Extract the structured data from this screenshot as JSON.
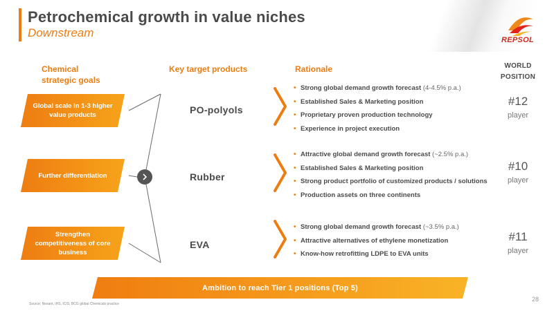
{
  "header": {
    "title": "Petrochemical growth in value niches",
    "subtitle": "Downstream",
    "logo_text": "REPSOL"
  },
  "columns": {
    "goals_line1": "Chemical",
    "goals_line2": "strategic goals",
    "products": "Key target products",
    "rationale": "Rationale",
    "world_line1": "WORLD",
    "world_line2": "POSITION"
  },
  "rows": [
    {
      "goal": "Global scale in 1-3 higher value products",
      "product": "PO-polyols",
      "rationale": [
        {
          "text": "Strong global demand growth forecast ",
          "note": "(4-4.5% p.a.)"
        },
        {
          "text": "Established Sales & Marketing position",
          "note": ""
        },
        {
          "text": "Proprietary proven production technology",
          "note": ""
        },
        {
          "text": "Experience in project execution",
          "note": ""
        }
      ],
      "rank": "#12",
      "rank_label": "player"
    },
    {
      "goal": "Further differentiation",
      "product": "Rubber",
      "rationale": [
        {
          "text": "Attractive global demand growth forecast ",
          "note": "(~2.5% p.a.)"
        },
        {
          "text": "Established Sales & Marketing position",
          "note": ""
        },
        {
          "text": "Strong product portfolio of customized products / solutions",
          "note": ""
        },
        {
          "text": "Production assets on three continents",
          "note": ""
        }
      ],
      "rank": "#10",
      "rank_label": "player"
    },
    {
      "goal": "Strengthen competitiveness of core business",
      "product": "EVA",
      "rationale": [
        {
          "text": "Strong global demand growth forecast ",
          "note": "(~3.5% p.a.)"
        },
        {
          "text": "Attractive alternatives of ethylene monetization",
          "note": ""
        },
        {
          "text": "Know-how retrofitting LDPE to EVA units",
          "note": ""
        }
      ],
      "rank": "#11",
      "rank_label": "player"
    }
  ],
  "ambition": "Ambition to reach Tier 1 positions (Top 5)",
  "source": "Source: Nexant, IHS, ICIS, BCG global Chemicals practice",
  "page_number": "28",
  "colors": {
    "accent": "#ee7d11",
    "accent_light": "#f9b326",
    "text": "#4a4a4a",
    "logo_red": "#cc2a1c"
  },
  "icons": {
    "arrow": "chevron-right-icon",
    "logo": "repsol-logo"
  }
}
